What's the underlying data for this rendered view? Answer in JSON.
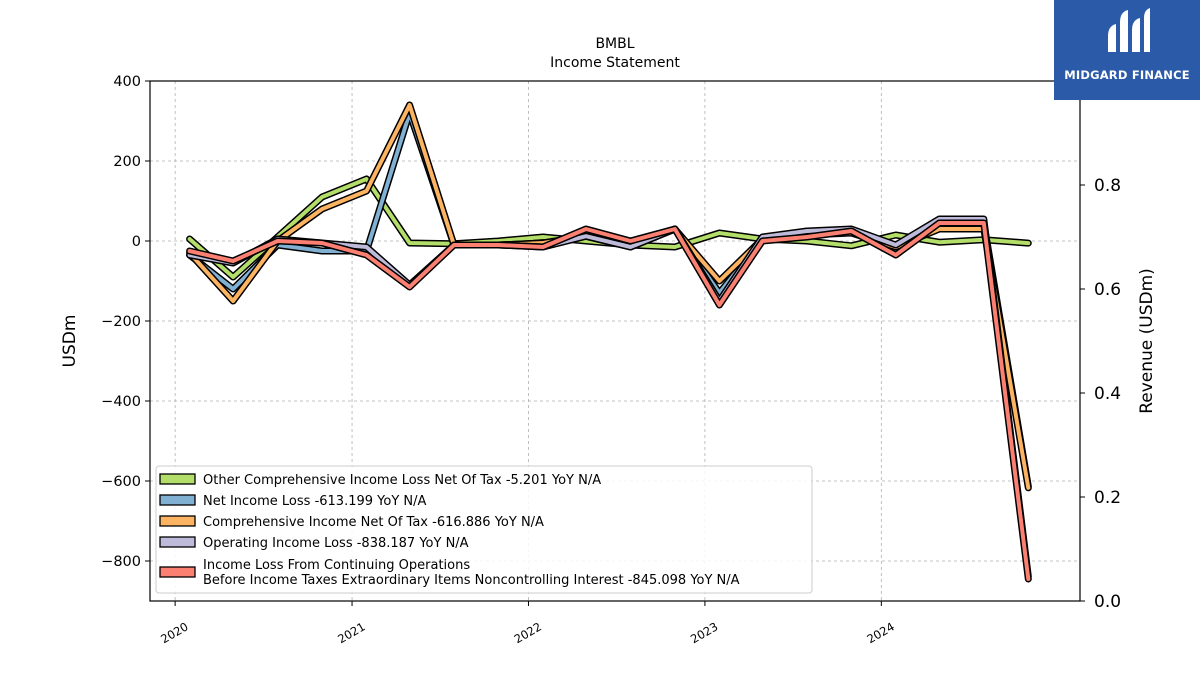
{
  "chart_data": {
    "type": "line",
    "title": "BMBL",
    "subtitle": "Income Statement",
    "ylabel": "USDm",
    "y2label": "Revenue (USDm)",
    "ylim": [
      -900,
      400
    ],
    "y2lim": [
      0,
      1
    ],
    "yticks": [
      400,
      200,
      0,
      -200,
      -400,
      -600,
      -800
    ],
    "ytick_labels": [
      "400",
      "200",
      "0",
      "−200",
      "−400",
      "−600",
      "−800"
    ],
    "y2ticks": [
      0.0,
      0.2,
      0.4,
      0.6,
      0.8
    ],
    "y2tick_labels": [
      "0.0",
      "0.2",
      "0.4",
      "0.6",
      "0.8"
    ],
    "xlim": [
      "2019-11-10",
      "2025-02-15"
    ],
    "xticks": [
      "2020-01-01",
      "2021-01-01",
      "2022-01-01",
      "2023-01-01",
      "2024-01-01"
    ],
    "xtick_labels": [
      "2020",
      "2021",
      "2022",
      "2023",
      "2024"
    ],
    "grid": true,
    "legend_position": "lower-left",
    "x": [
      "2020-01-31",
      "2020-04-30",
      "2020-07-31",
      "2020-10-31",
      "2021-01-31",
      "2021-04-30",
      "2021-07-31",
      "2021-10-31",
      "2022-01-31",
      "2022-04-30",
      "2022-07-31",
      "2022-10-31",
      "2023-01-31",
      "2023-04-30",
      "2023-07-31",
      "2023-10-31",
      "2024-01-31",
      "2024-04-30",
      "2024-07-31",
      "2024-10-31"
    ],
    "series": [
      {
        "name": "Other Comprehensive Income Loss Net Of Tax",
        "legend": "Other Comprehensive Income Loss Net Of Tax  -5.201 YoY N/A",
        "color": "#b3de69",
        "values": [
          5,
          -90,
          10,
          110,
          155,
          -5,
          -7,
          0,
          10,
          0,
          -10,
          -15,
          20,
          5,
          0,
          -12,
          15,
          -3,
          3,
          -5.201
        ]
      },
      {
        "name": "Net Income Loss",
        "legend": "Net Income Loss  -613.199 YoY N/A",
        "color": "#80b1d3",
        "values": [
          -35,
          -120,
          -10,
          -25,
          -25,
          320,
          -10,
          -10,
          -5,
          12,
          -15,
          30,
          -130,
          5,
          15,
          28,
          -15,
          40,
          45,
          -613.199
        ]
      },
      {
        "name": "Comprehensive Income Net Of Tax",
        "legend": "Comprehensive Income Net Of Tax  -616.886 YoY N/A",
        "color": "#fdb462",
        "values": [
          -30,
          -150,
          0,
          80,
          125,
          340,
          -10,
          -10,
          -5,
          12,
          -15,
          30,
          -100,
          5,
          15,
          20,
          -15,
          30,
          30,
          -616.886
        ]
      },
      {
        "name": "Operating Income Loss",
        "legend": "Operating Income Loss  -838.187 YoY N/A",
        "color": "#bebada",
        "values": [
          -35,
          -55,
          5,
          -5,
          -15,
          -110,
          -10,
          -10,
          -15,
          12,
          -15,
          30,
          -150,
          10,
          25,
          30,
          -10,
          55,
          55,
          -838.187
        ]
      },
      {
        "name": "Income Loss From Continuing Operations Before Income Taxes Extraordinary Items Noncontrolling Interest",
        "legend": "Income Loss From Continuing Operations\nBefore Income Taxes Extraordinary Items Noncontrolling Interest  -845.098 YoY N/A",
        "color": "#fb8072",
        "values": [
          -25,
          -50,
          0,
          -5,
          -35,
          -115,
          -10,
          -10,
          -15,
          30,
          0,
          30,
          -160,
          0,
          10,
          25,
          -35,
          45,
          45,
          -845.098
        ]
      }
    ]
  },
  "logo": {
    "text": "MIDGARD FINANCE"
  }
}
